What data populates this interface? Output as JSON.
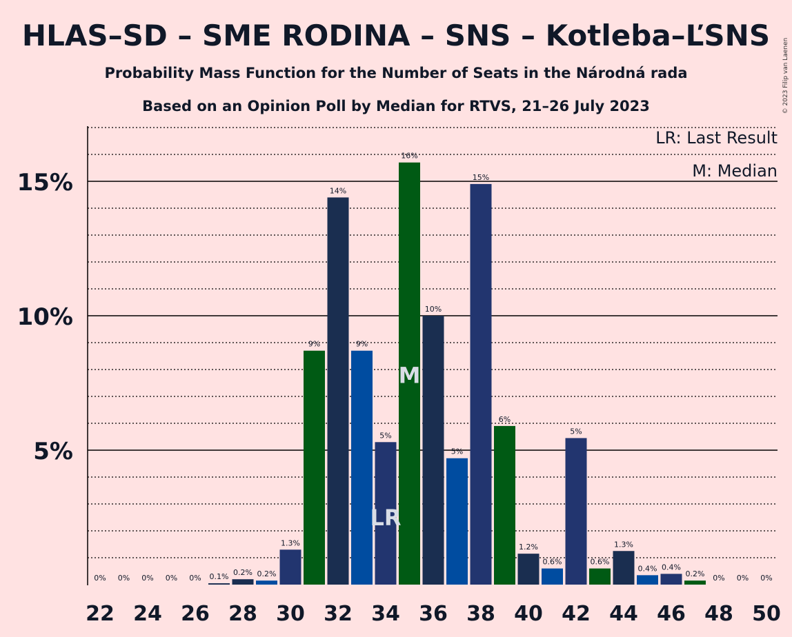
{
  "copyright": "© 2023 Filip van Laenen",
  "chart_data": {
    "type": "bar",
    "title": "HLAS–SD – SME RODINA – SNS – Kotleba–ĽSNS",
    "subtitle": "Probability Mass Function for the Number of Seats in the Národná rada",
    "subtitle2": "Based on an Opinion Poll by Median for RTVS, 21–26 July 2023",
    "xlabel": "",
    "ylabel": "",
    "ylim": [
      0,
      17
    ],
    "yticks": [
      {
        "value": 5,
        "label": "5%"
      },
      {
        "value": 10,
        "label": "10%"
      },
      {
        "value": 15,
        "label": "15%"
      }
    ],
    "grid": "dotted minor every 1%, solid major every 5%",
    "legend_position": "top-right",
    "legend": {
      "lr": "LR: Last Result",
      "m": "M: Median"
    },
    "series_colors": [
      "#005a14",
      "#1a2e50",
      "#004ca0",
      "#22356f"
    ],
    "points": [
      {
        "x": 22,
        "value": 0,
        "label": "0%",
        "color": "#005a14"
      },
      {
        "x": 23,
        "value": 0,
        "label": "0%",
        "color": "#1a2e50"
      },
      {
        "x": 24,
        "value": 0,
        "label": "0%",
        "color": "#004ca0"
      },
      {
        "x": 25,
        "value": 0,
        "label": "0%",
        "color": "#22356f"
      },
      {
        "x": 26,
        "value": 0,
        "label": "0%",
        "color": "#005a14"
      },
      {
        "x": 27,
        "value": 0.05,
        "label": "0.1%",
        "color": "#1a2e50"
      },
      {
        "x": 28,
        "value": 0.2,
        "label": "0.2%",
        "color": "#1a2e50"
      },
      {
        "x": 29,
        "value": 0.15,
        "label": "0.2%",
        "color": "#004ca0"
      },
      {
        "x": 30,
        "value": 1.3,
        "label": "1.3%",
        "color": "#22356f"
      },
      {
        "x": 31,
        "value": 8.7,
        "label": "9%",
        "color": "#005a14"
      },
      {
        "x": 32,
        "value": 14.4,
        "label": "14%",
        "color": "#1a2e50"
      },
      {
        "x": 33,
        "value": 8.7,
        "label": "9%",
        "color": "#004ca0"
      },
      {
        "x": 34,
        "value": 5.3,
        "label": "5%",
        "color": "#22356f",
        "marker": "LR"
      },
      {
        "x": 35,
        "value": 15.7,
        "label": "16%",
        "color": "#005a14",
        "marker": "M"
      },
      {
        "x": 36,
        "value": 10.0,
        "label": "10%",
        "color": "#1a2e50"
      },
      {
        "x": 37,
        "value": 4.7,
        "label": "5%",
        "color": "#004ca0"
      },
      {
        "x": 38,
        "value": 14.9,
        "label": "15%",
        "color": "#22356f"
      },
      {
        "x": 39,
        "value": 5.9,
        "label": "6%",
        "color": "#005a14"
      },
      {
        "x": 40,
        "value": 1.15,
        "label": "1.2%",
        "color": "#1a2e50"
      },
      {
        "x": 41,
        "value": 0.6,
        "label": "0.6%",
        "color": "#004ca0"
      },
      {
        "x": 42,
        "value": 5.45,
        "label": "5%",
        "color": "#22356f"
      },
      {
        "x": 43,
        "value": 0.6,
        "label": "0.6%",
        "color": "#005a14"
      },
      {
        "x": 44,
        "value": 1.25,
        "label": "1.3%",
        "color": "#1a2e50"
      },
      {
        "x": 45,
        "value": 0.35,
        "label": "0.4%",
        "color": "#004ca0"
      },
      {
        "x": 46,
        "value": 0.4,
        "label": "0.4%",
        "color": "#22356f"
      },
      {
        "x": 47,
        "value": 0.15,
        "label": "0.2%",
        "color": "#005a14"
      },
      {
        "x": 48,
        "value": 0,
        "label": "0%",
        "color": "#1a2e50"
      },
      {
        "x": 49,
        "value": 0,
        "label": "0%",
        "color": "#004ca0"
      },
      {
        "x": 50,
        "value": 0,
        "label": "0%",
        "color": "#22356f"
      }
    ],
    "xticks": [
      "22",
      "24",
      "26",
      "28",
      "30",
      "32",
      "34",
      "36",
      "38",
      "40",
      "42",
      "44",
      "46",
      "48",
      "50"
    ]
  }
}
